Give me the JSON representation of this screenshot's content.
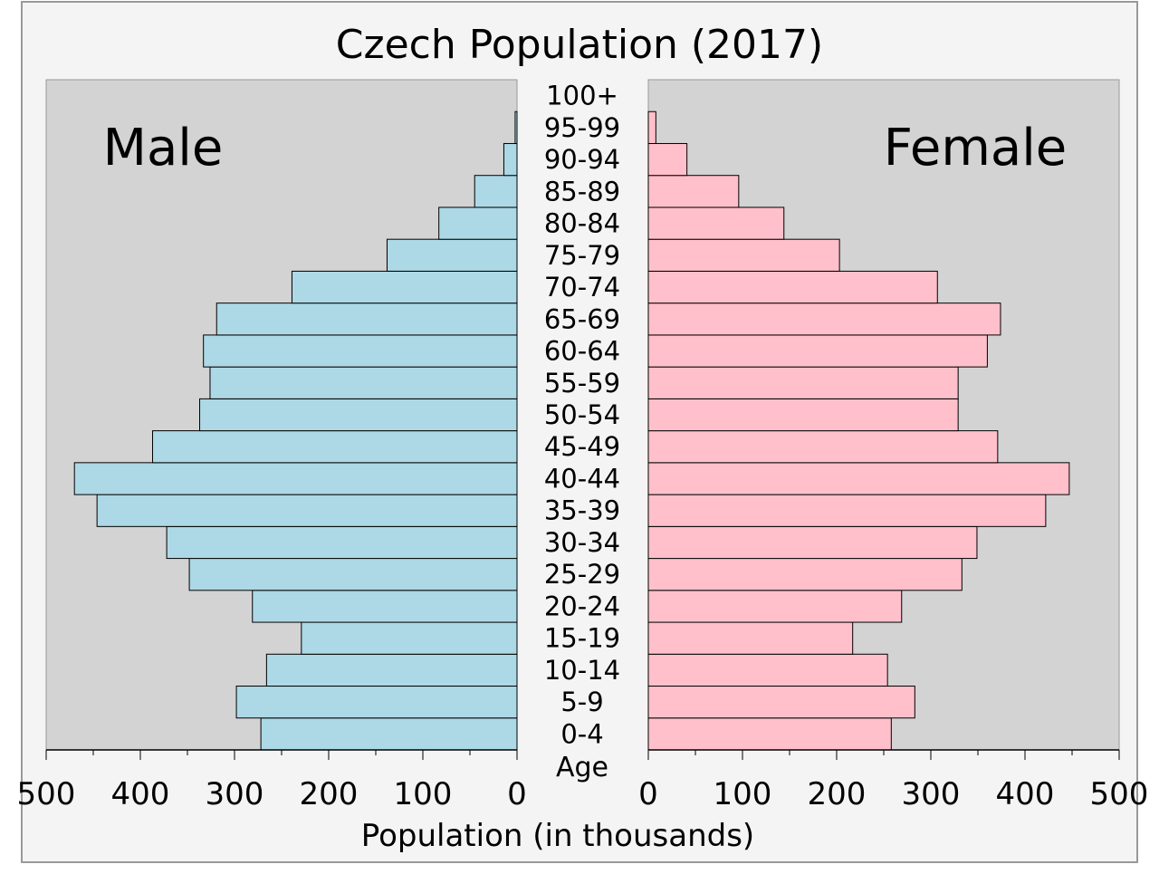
{
  "chart_data": {
    "type": "bar",
    "title": "Czech Population (2017)",
    "xlabel": "Population (in thousands)",
    "ylabel": "Age",
    "xlim": [
      0,
      500
    ],
    "orientation": "horizontal-pyramid",
    "categories": [
      "0-4",
      "5-9",
      "10-14",
      "15-19",
      "20-24",
      "25-29",
      "30-34",
      "35-39",
      "40-44",
      "45-49",
      "50-54",
      "55-59",
      "60-64",
      "65-69",
      "70-74",
      "75-79",
      "80-84",
      "85-89",
      "90-94",
      "95-99",
      "100+"
    ],
    "series": [
      {
        "name": "Male",
        "color": "#add8e6",
        "values": [
          272,
          298,
          266,
          229,
          281,
          348,
          372,
          446,
          470,
          387,
          337,
          326,
          333,
          319,
          239,
          138,
          83,
          45,
          14,
          2,
          0
        ]
      },
      {
        "name": "Female",
        "color": "#ffc0cb",
        "values": [
          258,
          283,
          254,
          217,
          269,
          333,
          349,
          422,
          447,
          371,
          329,
          329,
          360,
          374,
          307,
          203,
          144,
          96,
          41,
          8,
          0
        ]
      }
    ],
    "male_ticks": [
      "500",
      "400",
      "300",
      "200",
      "100",
      "0"
    ],
    "female_ticks": [
      "0",
      "100",
      "200",
      "300",
      "400",
      "500"
    ],
    "grid": false,
    "colors": {
      "background": "#f4f4f4",
      "plot_area": "#d3d3d3",
      "border": "#999999"
    }
  }
}
